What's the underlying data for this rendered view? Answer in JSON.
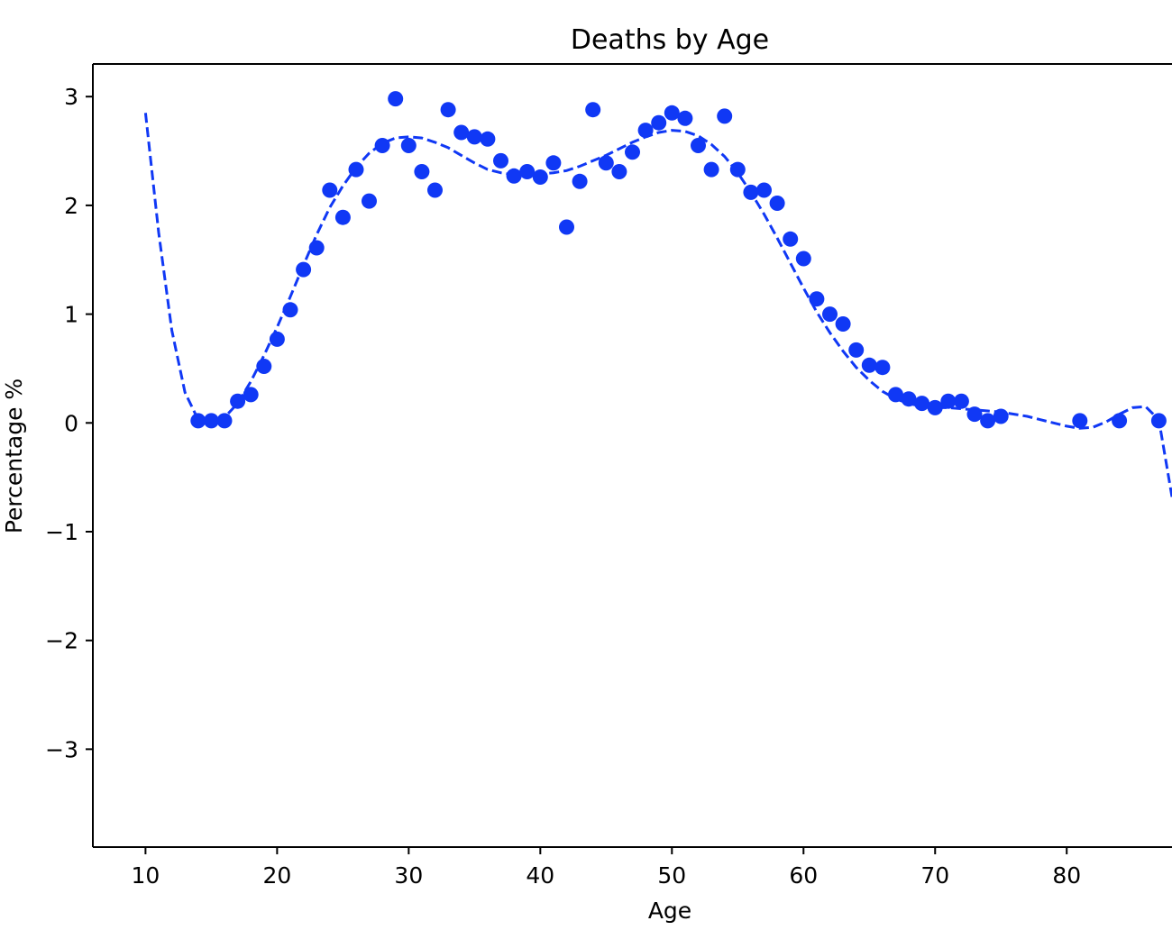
{
  "chart_data": {
    "type": "scatter",
    "title": "Deaths by Age",
    "xlabel": "Age",
    "ylabel": "Percentage %",
    "xlim": [
      6,
      88
    ],
    "ylim": [
      -3.9,
      3.3
    ],
    "x_ticks": [
      10,
      20,
      30,
      40,
      50,
      60,
      70,
      80
    ],
    "y_ticks": [
      -3,
      -2,
      -1,
      0,
      1,
      2,
      3
    ],
    "x_tick_labels": [
      "10",
      "20",
      "30",
      "40",
      "50",
      "60",
      "70",
      "80"
    ],
    "y_tick_labels": [
      "−3",
      "−2",
      "−1",
      "0",
      "1",
      "2",
      "3"
    ],
    "grid": false,
    "color": "#1038f5",
    "series": [
      {
        "style": "markers",
        "x": [
          14,
          15,
          16,
          17,
          18,
          19,
          20,
          21,
          22,
          23,
          24,
          25,
          26,
          27,
          28,
          29,
          30,
          31,
          32,
          33,
          34,
          35,
          36,
          37,
          38,
          39,
          40,
          41,
          42,
          43,
          44,
          45,
          46,
          47,
          48,
          49,
          50,
          51,
          52,
          53,
          54,
          55,
          56,
          57,
          58,
          59,
          60,
          61,
          62,
          63,
          64,
          65,
          66,
          67,
          68,
          69,
          70,
          71,
          72,
          73,
          74,
          75,
          81,
          84,
          87
        ],
        "y": [
          0.02,
          0.02,
          0.02,
          0.2,
          0.26,
          0.52,
          0.77,
          1.04,
          1.41,
          1.61,
          2.14,
          1.89,
          2.33,
          2.04,
          2.55,
          2.98,
          2.55,
          2.31,
          2.14,
          2.88,
          2.67,
          2.63,
          2.61,
          2.41,
          2.27,
          2.31,
          2.26,
          2.39,
          1.8,
          2.22,
          2.88,
          2.39,
          2.31,
          2.49,
          2.69,
          2.76,
          2.85,
          2.8,
          2.55,
          2.33,
          2.82,
          2.33,
          2.12,
          2.14,
          2.02,
          1.69,
          1.51,
          1.14,
          1.0,
          0.91,
          0.67,
          0.53,
          0.51,
          0.26,
          0.22,
          0.18,
          0.14,
          0.2,
          0.2,
          0.08,
          0.02,
          0.06,
          0.02,
          0.02,
          0.02
        ]
      },
      {
        "style": "dashed-line",
        "x": [
          10,
          11,
          12,
          13,
          14,
          15,
          16,
          17,
          18,
          19,
          20,
          21,
          22,
          23,
          24,
          25,
          26,
          27,
          28,
          29,
          30,
          31,
          32,
          33,
          34,
          35,
          36,
          37,
          38,
          39,
          40,
          41,
          42,
          43,
          44,
          45,
          46,
          47,
          48,
          49,
          50,
          51,
          52,
          53,
          54,
          55,
          56,
          57,
          58,
          59,
          60,
          61,
          62,
          63,
          64,
          65,
          66,
          67,
          68,
          69,
          70,
          71,
          72,
          73,
          74,
          75,
          76,
          77,
          78,
          79,
          80,
          81,
          82,
          83,
          84,
          85,
          86,
          87,
          88
        ],
        "y": [
          2.85,
          1.75,
          0.85,
          0.28,
          0.03,
          0.0,
          0.05,
          0.18,
          0.38,
          0.62,
          0.88,
          1.16,
          1.45,
          1.73,
          1.98,
          2.18,
          2.35,
          2.48,
          2.57,
          2.62,
          2.63,
          2.62,
          2.58,
          2.53,
          2.46,
          2.39,
          2.33,
          2.3,
          2.28,
          2.28,
          2.29,
          2.3,
          2.32,
          2.36,
          2.41,
          2.46,
          2.52,
          2.58,
          2.63,
          2.67,
          2.69,
          2.68,
          2.64,
          2.56,
          2.45,
          2.3,
          2.12,
          1.92,
          1.7,
          1.47,
          1.24,
          1.02,
          0.83,
          0.66,
          0.51,
          0.39,
          0.29,
          0.22,
          0.18,
          0.15,
          0.14,
          0.14,
          0.13,
          0.12,
          0.11,
          0.1,
          0.08,
          0.06,
          0.03,
          0.0,
          -0.03,
          -0.05,
          -0.04,
          0.01,
          0.08,
          0.14,
          0.15,
          0.03,
          -0.68
        ]
      }
    ]
  }
}
